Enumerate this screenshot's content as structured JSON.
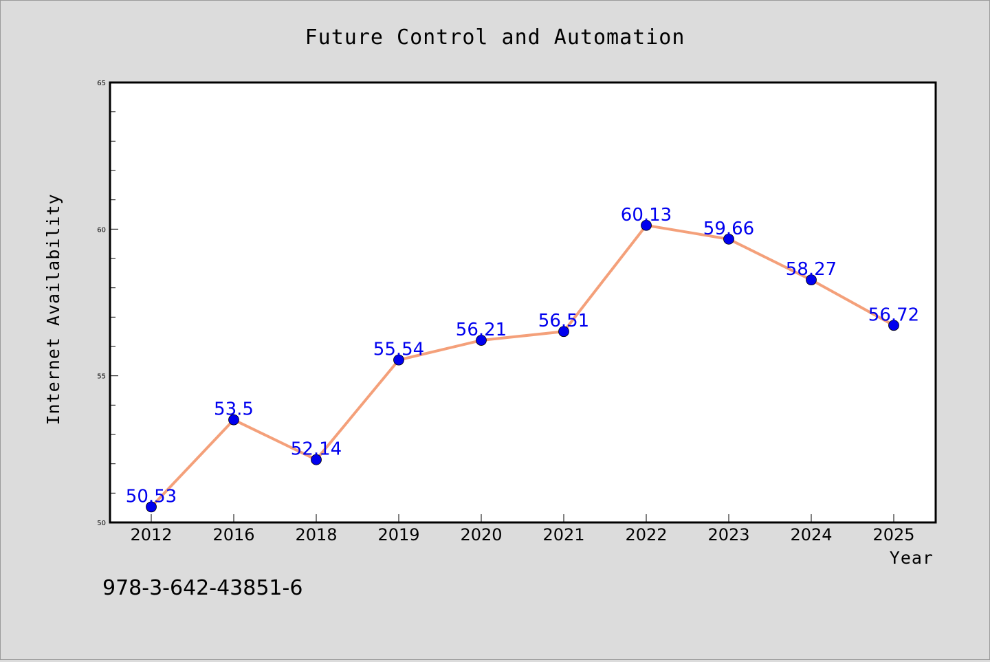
{
  "chart_data": {
    "type": "line",
    "title": "Future Control and Automation",
    "xlabel": "Year",
    "ylabel": "Internet Availability",
    "categories": [
      "2012",
      "2016",
      "2018",
      "2019",
      "2020",
      "2021",
      "2022",
      "2023",
      "2024",
      "2025"
    ],
    "series": [
      {
        "values": [
          50.53,
          53.5,
          52.14,
          55.54,
          56.21,
          56.51,
          60.13,
          59.66,
          58.27,
          56.72
        ],
        "data_labels": [
          "50.53",
          "53.5",
          "52.14",
          "55.54",
          "56.21",
          "56.51",
          "60.13",
          "59.66",
          "58.27",
          "56.72"
        ],
        "line_color": "#f4a07a",
        "marker_color": "#0000ee"
      }
    ],
    "ylim": [
      50,
      65
    ],
    "yticks": [
      "50",
      "55",
      "60",
      "65"
    ],
    "grid": false,
    "legend": false
  },
  "footer": {
    "isbn": "978-3-642-43851-6"
  },
  "colors": {
    "background": "#dcdcdc",
    "plot_area": "#ffffff",
    "line": "#f4a07a",
    "marker": "#0000ee",
    "data_label": "#0000ee"
  }
}
